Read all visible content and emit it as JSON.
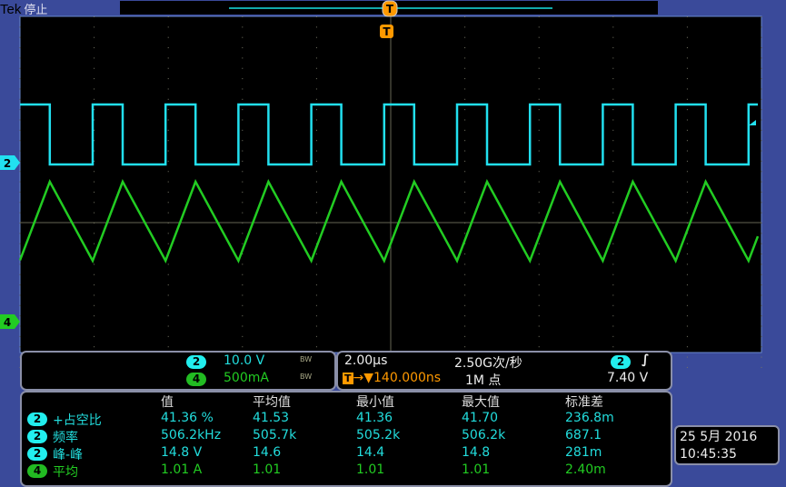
{
  "header": {
    "brand": "Tek",
    "status": "停止"
  },
  "markers": {
    "trigger": "T",
    "ch2": "2",
    "ch4": "4"
  },
  "colors": {
    "ch2": "#22e0f0",
    "ch4": "#22cc22",
    "trigger": "#ff9900"
  },
  "channels": [
    {
      "num": "2",
      "scale": "10.0 V",
      "bw": "BW"
    },
    {
      "num": "4",
      "scale": "500mA",
      "bw": "BW"
    }
  ],
  "timebase": {
    "scale": "2.00µs",
    "sample_rate": "2.50G次/秒",
    "trigger_pos": "▼140.000ns",
    "record": "1M 点",
    "trig_ch": "2",
    "trig_slope": "rising-edge-icon",
    "trig_level": "7.40 V"
  },
  "measurements": {
    "headers": [
      "值",
      "平均值",
      "最小值",
      "最大值",
      "标准差"
    ],
    "rows": [
      {
        "ch": "2",
        "name": "+占空比",
        "values": [
          "41.36 %",
          "41.53",
          "41.36",
          "41.70",
          "236.8m"
        ]
      },
      {
        "ch": "2",
        "name": "频率",
        "values": [
          "506.2kHz",
          "505.7k",
          "505.2k",
          "506.2k",
          "687.1"
        ]
      },
      {
        "ch": "2",
        "name": "峰-峰",
        "values": [
          "14.8 V",
          "14.6",
          "14.4",
          "14.8",
          "281m"
        ]
      },
      {
        "ch": "4",
        "name": "平均",
        "values": [
          "1.01 A",
          "1.01",
          "1.01",
          "1.01",
          "2.40m"
        ]
      }
    ]
  },
  "datetime": {
    "date": "25 5月 2016",
    "time": "10:45:35"
  }
}
